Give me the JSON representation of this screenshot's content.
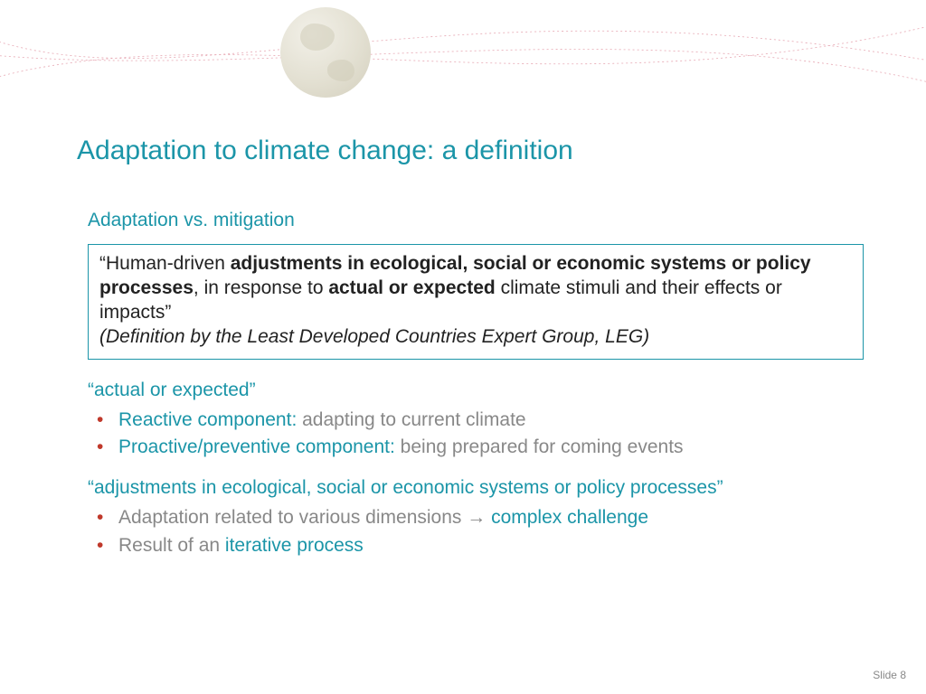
{
  "colors": {
    "teal": "#1b95a8",
    "bullet_red": "#c0392b",
    "body_gray": "#808080",
    "box_border": "#1b95a8",
    "curve": "#e7a9b4",
    "title": "#1b95a8"
  },
  "title": "Adaptation to climate change: a definition",
  "subtitle": "Adaptation vs. mitigation",
  "definition": {
    "seg1": "“Human-driven ",
    "seg2_bold": "adjustments in ecological, social or economic systems or policy processes",
    "seg3": ", in response to ",
    "seg4_bold": "actual or expected",
    "seg5": " climate stimuli and their effects or impacts”",
    "citation": "(Definition by the Least Developed Countries Expert Group, LEG)"
  },
  "section1": {
    "quote": "“actual or expected”",
    "items": [
      {
        "lead": "Reactive component: ",
        "rest": "adapting to current climate"
      },
      {
        "lead": "Proactive/preventive component: ",
        "rest": "being prepared for coming events"
      }
    ]
  },
  "section2": {
    "quote": "“adjustments in ecological, social or economic systems or policy processes”",
    "items": [
      {
        "pre": "Adaptation related to various dimensions ",
        "arrow": "→ ",
        "teal": "complex challenge"
      },
      {
        "pre": "Result of an ",
        "arrow": "",
        "teal": "iterative process"
      }
    ]
  },
  "footer": "Slide 8"
}
